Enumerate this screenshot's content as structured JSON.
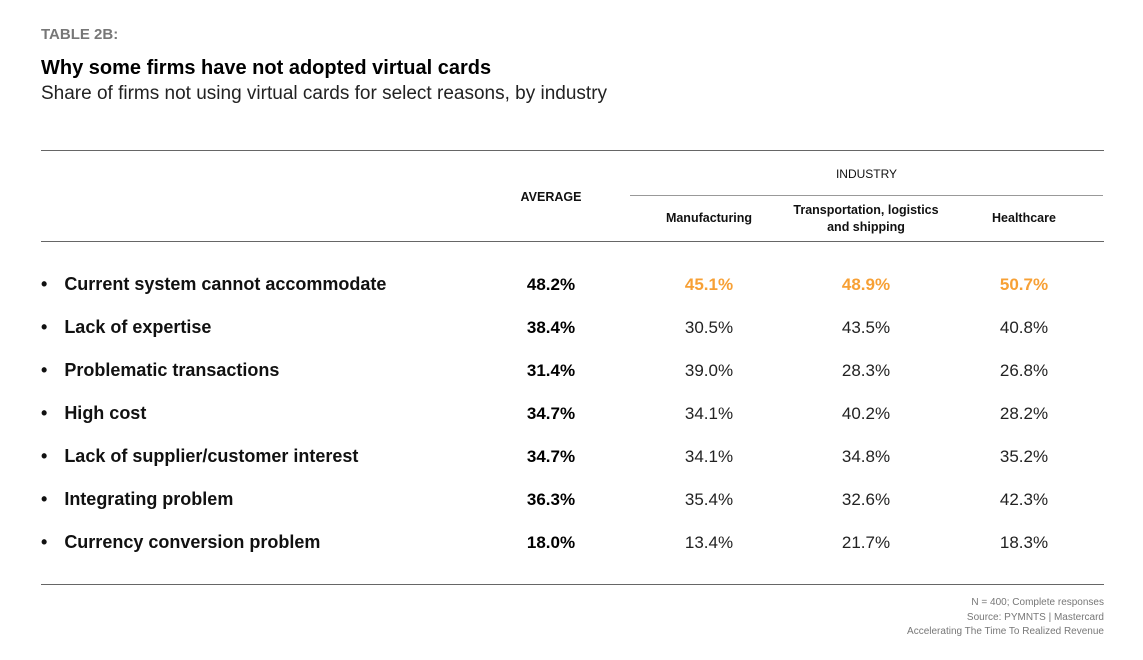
{
  "header": {
    "label": "TABLE 2B:",
    "title": "Why some firms have not adopted virtual cards",
    "subtitle": "Share of firms not using virtual cards for select reasons, by industry"
  },
  "colors": {
    "highlight": "#f7a035",
    "text": "#111111",
    "rule": "#666666"
  },
  "chart_data": {
    "type": "table",
    "group_header": "INDUSTRY",
    "columns": [
      "AVERAGE",
      "Manufacturing",
      "Transportation, logistics and shipping",
      "Healthcare"
    ],
    "columns_display": {
      "transport_line1": "Transportation, logistics",
      "transport_line2": "and shipping"
    },
    "bullet": "•",
    "rows": [
      {
        "reason": "Current system cannot accommodate",
        "values": [
          "48.2%",
          "45.1%",
          "48.9%",
          "50.7%"
        ],
        "highlight": true
      },
      {
        "reason": "Lack of expertise",
        "values": [
          "38.4%",
          "30.5%",
          "43.5%",
          "40.8%"
        ]
      },
      {
        "reason": "Problematic transactions",
        "values": [
          "31.4%",
          "39.0%",
          "28.3%",
          "26.8%"
        ]
      },
      {
        "reason": "High cost",
        "values": [
          "34.7%",
          "34.1%",
          "40.2%",
          "28.2%"
        ]
      },
      {
        "reason": "Lack of supplier/customer interest",
        "values": [
          "34.7%",
          "34.1%",
          "34.8%",
          "35.2%"
        ]
      },
      {
        "reason": "Integrating problem",
        "values": [
          "36.3%",
          "35.4%",
          "32.6%",
          "42.3%"
        ]
      },
      {
        "reason": "Currency conversion problem",
        "values": [
          "18.0%",
          "13.4%",
          "21.7%",
          "18.3%"
        ]
      }
    ]
  },
  "footer": {
    "sample": "N = 400; Complete responses",
    "source": "Source: PYMNTS  |  Mastercard",
    "report": "Accelerating The Time To Realized Revenue"
  }
}
